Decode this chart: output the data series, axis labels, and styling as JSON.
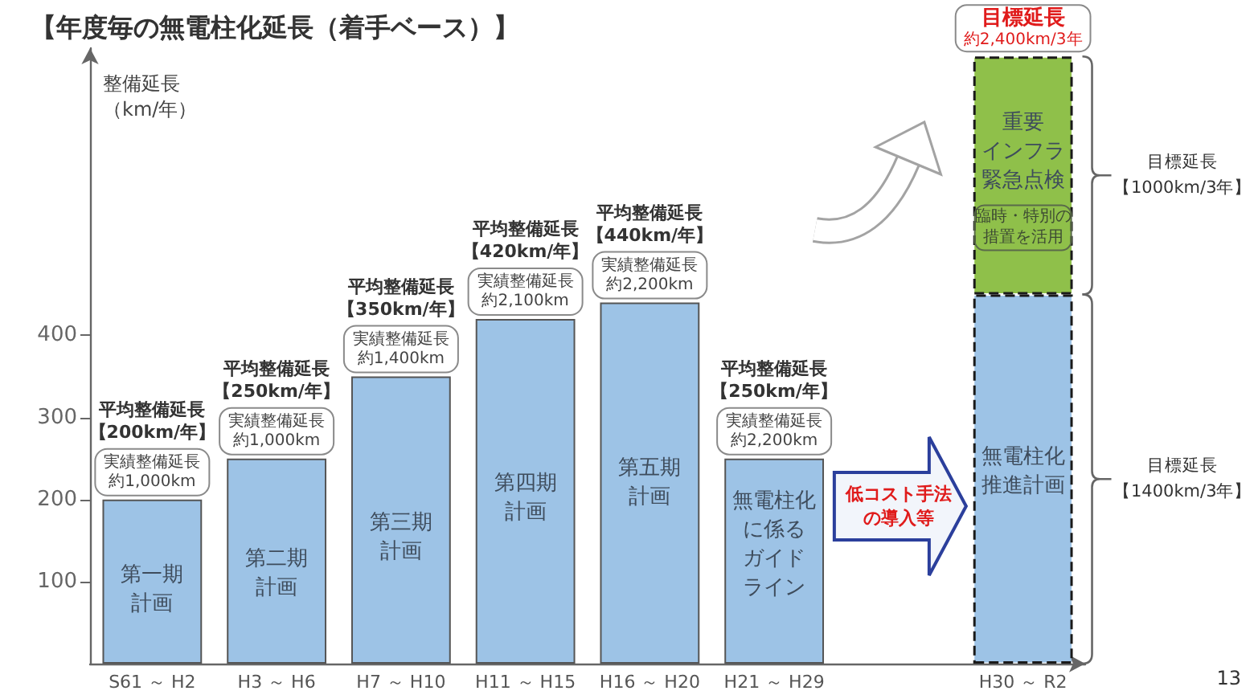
{
  "chart_data": {
    "type": "bar",
    "title": "【年度毎の無電柱化延長（着手ベース）】",
    "ylabel": "整備延長（km/年）",
    "categories": [
      "S61 ～ H2",
      "H3 ～ H6",
      "H7 ～ H10",
      "H11 ～ H15",
      "H16 ～ H20",
      "H21 ～ H29",
      null,
      "H30 ～ R2"
    ],
    "series": [
      {
        "color": "#9dc3e6",
        "values": [
          200,
          250,
          350,
          420,
          440,
          250,
          null,
          450
        ]
      },
      {
        "color": "#8fc04a",
        "values": [
          null,
          null,
          null,
          null,
          null,
          null,
          null,
          290
        ]
      }
    ],
    "stacked": true,
    "ylim": [
      0,
      750
    ],
    "yticks": [
      100,
      200,
      300,
      400
    ],
    "annotations": [
      {
        "text": "実績整備延長約1,000km",
        "x": "S61 ～ H2",
        "y": 200
      },
      {
        "text": "実績整備延長約1,000km",
        "x": "H3 ～ H6",
        "y": 250
      },
      {
        "text": "実績整備延長約1,400km",
        "x": "H7 ～ H10",
        "y": 350
      },
      {
        "text": "実績整備延長約2,100km",
        "x": "H11 ～ H15",
        "y": 420
      },
      {
        "text": "実績整備延長約2,200km",
        "x": "H16 ～ H20",
        "y": 440
      },
      {
        "text": "実績整備延長約2,200km",
        "x": "H21 ～ H29",
        "y": 250
      },
      {
        "text": "目標延長約2,400km/3年",
        "x": "H30 ～ R2",
        "y": 740
      },
      "平均整備延長【200km/年】",
      "平均整備延長【250km/年】",
      "平均整備延長【350km/年】",
      "平均整備延長【420km/年】",
      "平均整備延長【440km/年】",
      "平均整備延長【250km/年】",
      "第一期計画",
      "第二期計画",
      "第三期計画",
      "第四期計画",
      "第五期計画",
      "無電柱化に係るガイドライン",
      "無電柱化推進計画",
      "重要インフラ緊急点検",
      "臨時・特別の措置を活用",
      "目標延長【1000km/3年】",
      "目標延長【1400km/3年】",
      "低コスト手法の導入等",
      "13"
    ]
  }
}
